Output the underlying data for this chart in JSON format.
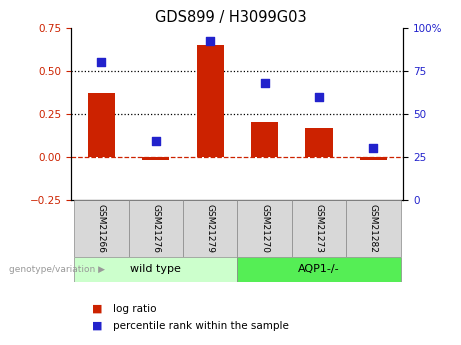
{
  "title": "GDS899 / H3099G03",
  "categories": [
    "GSM21266",
    "GSM21276",
    "GSM21279",
    "GSM21270",
    "GSM21273",
    "GSM21282"
  ],
  "log_ratio": [
    0.37,
    -0.02,
    0.65,
    0.2,
    0.17,
    -0.02
  ],
  "percentile_rank": [
    80,
    34,
    92,
    68,
    60,
    30
  ],
  "bar_color": "#cc2200",
  "dot_color": "#2222cc",
  "ylim_left": [
    -0.25,
    0.75
  ],
  "ylim_right": [
    0,
    100
  ],
  "yticks_left": [
    -0.25,
    0,
    0.25,
    0.5,
    0.75
  ],
  "yticks_right": [
    0,
    25,
    50,
    75,
    100
  ],
  "hlines": [
    0.25,
    0.5
  ],
  "hline_zero_color": "#cc2200",
  "hline_dotted_color": "#000000",
  "group1_label": "wild type",
  "group2_label": "AQP1-/-",
  "group1_indices": [
    0,
    1,
    2
  ],
  "group2_indices": [
    3,
    4,
    5
  ],
  "group1_color": "#ccffcc",
  "group2_color": "#55ee55",
  "genotype_label": "genotype/variation",
  "legend_log_ratio": "log ratio",
  "legend_percentile": "percentile rank within the sample",
  "tick_label_color_left": "#cc2200",
  "tick_label_color_right": "#2222cc",
  "bar_width": 0.5,
  "dot_size": 35,
  "sample_box_color": "#d8d8d8",
  "arrow_color": "#999999"
}
